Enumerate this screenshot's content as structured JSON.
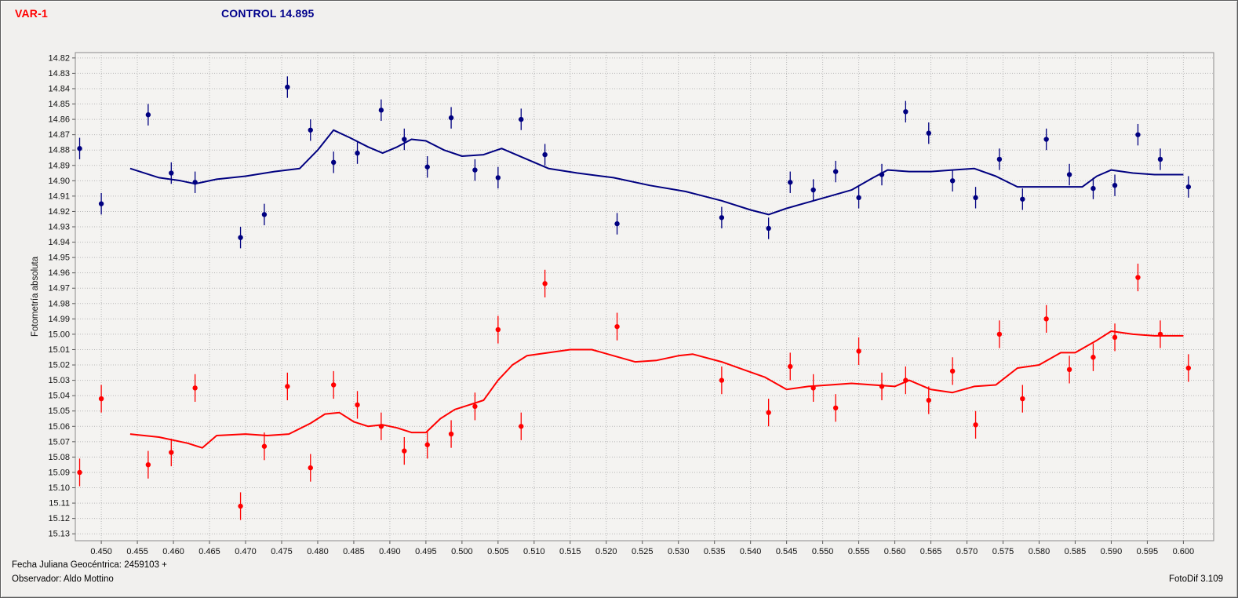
{
  "header": {
    "var_label": "VAR-1",
    "control_label": "CONTROL 14.895"
  },
  "footer": {
    "julian_date": "Fecha Juliana Geocéntrica: 2459103 +",
    "observer": "Observador: Aldo Mottino",
    "app_version": "FotoDif 3.109"
  },
  "chart_data": {
    "type": "scatter",
    "title": "",
    "xlabel": "",
    "ylabel": "Fotometría absoluta",
    "y_axis_inverted": true,
    "has_error_bars": true,
    "grid": true,
    "x_range": [
      0.4464,
      0.6042
    ],
    "y_range": [
      14.8165,
      15.1345
    ],
    "x_ticks": [
      "0.450",
      "0.455",
      "0.460",
      "0.465",
      "0.470",
      "0.475",
      "0.480",
      "0.485",
      "0.490",
      "0.495",
      "0.500",
      "0.505",
      "0.510",
      "0.515",
      "0.520",
      "0.525",
      "0.530",
      "0.535",
      "0.540",
      "0.545",
      "0.550",
      "0.555",
      "0.560",
      "0.565",
      "0.570",
      "0.575",
      "0.580",
      "0.585",
      "0.590",
      "0.595",
      "0.600"
    ],
    "y_ticks": [
      "14.82",
      "14.83",
      "14.84",
      "14.85",
      "14.86",
      "14.87",
      "14.88",
      "14.89",
      "14.90",
      "14.91",
      "14.92",
      "14.93",
      "14.94",
      "14.95",
      "14.96",
      "14.97",
      "14.98",
      "14.99",
      "15.00",
      "15.01",
      "15.02",
      "15.03",
      "15.04",
      "15.05",
      "15.06",
      "15.07",
      "15.08",
      "15.09",
      "15.10",
      "15.11",
      "15.12",
      "15.13"
    ],
    "colors": {
      "control": "#000080",
      "var": "#ff0000",
      "grid": "#b8b8b8",
      "plot_bg": "#f4f3f1",
      "frame": "#8a8a8a",
      "tick_text": "#111111"
    },
    "x_values": [
      0.447,
      0.45,
      0.4565,
      0.4597,
      0.463,
      0.4693,
      0.4726,
      0.4758,
      0.479,
      0.4822,
      0.4855,
      0.4888,
      0.492,
      0.4952,
      0.4985,
      0.5018,
      0.505,
      0.5082,
      0.5115,
      0.5215,
      0.536,
      0.5425,
      0.5455,
      0.5487,
      0.5518,
      0.555,
      0.5582,
      0.5615,
      0.5647,
      0.568,
      0.5712,
      0.5745,
      0.5777,
      0.581,
      0.5842,
      0.5875,
      0.5905,
      0.5937,
      0.5968,
      0.6007
    ],
    "series": [
      {
        "key": "control",
        "name": "CONTROL",
        "color": "#000080",
        "err": 0.007,
        "values": [
          14.879,
          14.915,
          14.857,
          14.895,
          14.901,
          14.937,
          14.922,
          14.839,
          14.867,
          14.888,
          14.882,
          14.854,
          14.873,
          14.891,
          14.859,
          14.893,
          14.898,
          14.86,
          14.883,
          14.928,
          14.924,
          14.931,
          14.901,
          14.906,
          14.894,
          14.911,
          14.896,
          14.855,
          14.869,
          14.9,
          14.911,
          14.886,
          14.912,
          14.873,
          14.896,
          14.905,
          14.903,
          14.87,
          14.886,
          14.904
        ],
        "trend": [
          [
            0.454,
            14.892
          ],
          [
            0.458,
            14.898
          ],
          [
            0.461,
            14.9
          ],
          [
            0.463,
            14.902
          ],
          [
            0.466,
            14.899
          ],
          [
            0.47,
            14.897
          ],
          [
            0.474,
            14.894
          ],
          [
            0.4775,
            14.892
          ],
          [
            0.48,
            14.88
          ],
          [
            0.4822,
            14.867
          ],
          [
            0.4845,
            14.872
          ],
          [
            0.487,
            14.878
          ],
          [
            0.489,
            14.882
          ],
          [
            0.491,
            14.878
          ],
          [
            0.493,
            14.873
          ],
          [
            0.495,
            14.874
          ],
          [
            0.4975,
            14.88
          ],
          [
            0.5,
            14.884
          ],
          [
            0.503,
            14.883
          ],
          [
            0.5055,
            14.879
          ],
          [
            0.509,
            14.886
          ],
          [
            0.512,
            14.892
          ],
          [
            0.516,
            14.895
          ],
          [
            0.521,
            14.898
          ],
          [
            0.526,
            14.903
          ],
          [
            0.531,
            14.907
          ],
          [
            0.536,
            14.913
          ],
          [
            0.54,
            14.919
          ],
          [
            0.5425,
            14.922
          ],
          [
            0.545,
            14.918
          ],
          [
            0.548,
            14.914
          ],
          [
            0.551,
            14.91
          ],
          [
            0.554,
            14.906
          ],
          [
            0.557,
            14.898
          ],
          [
            0.559,
            14.893
          ],
          [
            0.562,
            14.894
          ],
          [
            0.565,
            14.894
          ],
          [
            0.568,
            14.893
          ],
          [
            0.571,
            14.892
          ],
          [
            0.574,
            14.897
          ],
          [
            0.577,
            14.904
          ],
          [
            0.58,
            14.904
          ],
          [
            0.583,
            14.904
          ],
          [
            0.586,
            14.904
          ],
          [
            0.588,
            14.897
          ],
          [
            0.59,
            14.893
          ],
          [
            0.593,
            14.895
          ],
          [
            0.596,
            14.896
          ],
          [
            0.6,
            14.896
          ]
        ]
      },
      {
        "key": "var",
        "name": "VAR-1",
        "color": "#ff0000",
        "err": 0.009,
        "values": [
          15.09,
          15.042,
          15.085,
          15.077,
          15.035,
          15.112,
          15.073,
          15.034,
          15.087,
          15.033,
          15.046,
          15.06,
          15.076,
          15.072,
          15.065,
          15.047,
          14.997,
          15.06,
          14.967,
          14.995,
          15.03,
          15.051,
          15.021,
          15.035,
          15.048,
          15.011,
          15.034,
          15.03,
          15.043,
          15.024,
          15.059,
          15.0,
          15.042,
          14.99,
          15.023,
          15.015,
          15.002,
          14.963,
          15.0,
          15.022
        ],
        "trend": [
          [
            0.454,
            15.065
          ],
          [
            0.458,
            15.067
          ],
          [
            0.462,
            15.071
          ],
          [
            0.464,
            15.074
          ],
          [
            0.466,
            15.066
          ],
          [
            0.47,
            15.065
          ],
          [
            0.473,
            15.066
          ],
          [
            0.476,
            15.065
          ],
          [
            0.479,
            15.058
          ],
          [
            0.481,
            15.052
          ],
          [
            0.483,
            15.051
          ],
          [
            0.485,
            15.057
          ],
          [
            0.487,
            15.06
          ],
          [
            0.489,
            15.059
          ],
          [
            0.491,
            15.061
          ],
          [
            0.493,
            15.064
          ],
          [
            0.495,
            15.064
          ],
          [
            0.497,
            15.055
          ],
          [
            0.499,
            15.049
          ],
          [
            0.501,
            15.046
          ],
          [
            0.503,
            15.043
          ],
          [
            0.505,
            15.03
          ],
          [
            0.507,
            15.02
          ],
          [
            0.509,
            15.014
          ],
          [
            0.512,
            15.012
          ],
          [
            0.515,
            15.01
          ],
          [
            0.518,
            15.01
          ],
          [
            0.521,
            15.014
          ],
          [
            0.524,
            15.018
          ],
          [
            0.527,
            15.017
          ],
          [
            0.53,
            15.014
          ],
          [
            0.532,
            15.013
          ],
          [
            0.536,
            15.018
          ],
          [
            0.539,
            15.023
          ],
          [
            0.542,
            15.028
          ],
          [
            0.545,
            15.036
          ],
          [
            0.548,
            15.034
          ],
          [
            0.551,
            15.033
          ],
          [
            0.554,
            15.032
          ],
          [
            0.557,
            15.033
          ],
          [
            0.56,
            15.034
          ],
          [
            0.562,
            15.03
          ],
          [
            0.565,
            15.036
          ],
          [
            0.568,
            15.038
          ],
          [
            0.571,
            15.034
          ],
          [
            0.574,
            15.033
          ],
          [
            0.577,
            15.022
          ],
          [
            0.58,
            15.02
          ],
          [
            0.583,
            15.012
          ],
          [
            0.585,
            15.012
          ],
          [
            0.588,
            15.004
          ],
          [
            0.59,
            14.998
          ],
          [
            0.593,
            15.0
          ],
          [
            0.596,
            15.001
          ],
          [
            0.6,
            15.001
          ]
        ]
      }
    ]
  }
}
